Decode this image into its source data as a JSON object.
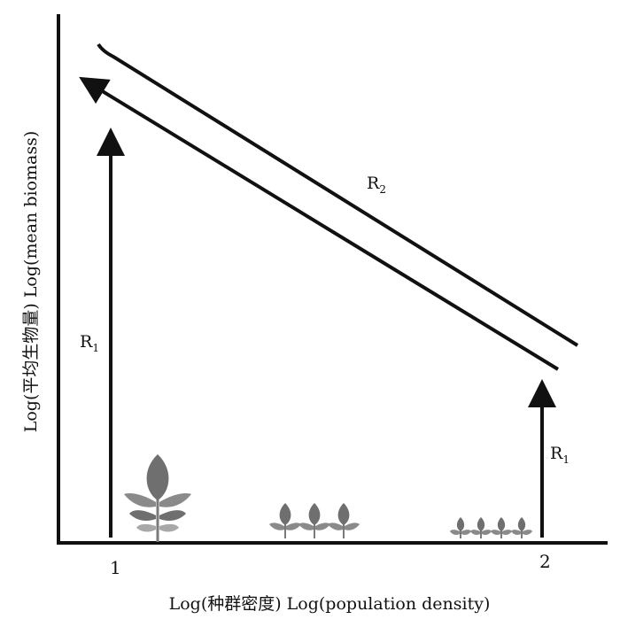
{
  "axes": {
    "y_label": "Log(平均生物量)  Log(mean biomass)",
    "x_label": "Log(种群密度)  Log(population density)",
    "tick_1": "1",
    "tick_2": "2"
  },
  "arrows": {
    "r1": "R",
    "r1_sub": "1",
    "r2": "R",
    "r2_sub": "2"
  },
  "colors": {
    "ink": "#111111",
    "leaf": "#6f6f6f",
    "leaf_light": "#a8a8a8",
    "stem": "#7a7a7a"
  },
  "icons": [
    "large-plant-icon",
    "medium-plants-icon",
    "small-plants-icon"
  ]
}
